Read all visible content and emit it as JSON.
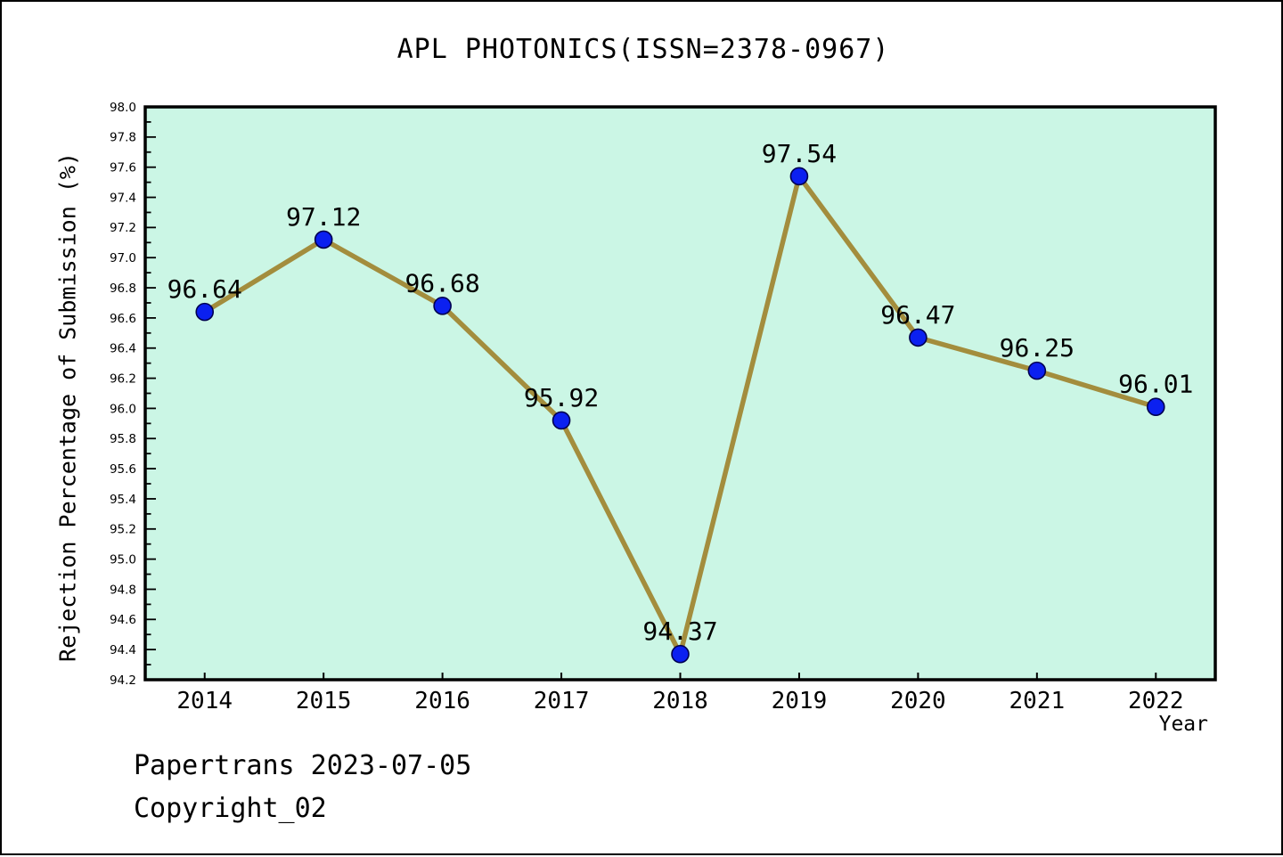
{
  "chart_data": {
    "type": "line",
    "title": "APL PHOTONICS(ISSN=2378-0967)",
    "xlabel": "Year",
    "ylabel": "Rejection Percentage of Submission (%)",
    "categories": [
      2014,
      2015,
      2016,
      2017,
      2018,
      2019,
      2020,
      2021,
      2022
    ],
    "values": [
      96.64,
      97.12,
      96.68,
      95.92,
      94.37,
      97.54,
      96.47,
      96.25,
      96.01
    ],
    "point_labels": [
      "96.64",
      "97.12",
      "96.68",
      "95.92",
      "94.37",
      "97.54",
      "96.47",
      "96.25",
      "96.01"
    ],
    "ylim": [
      94.2,
      98.0
    ],
    "xlim": [
      2013.5,
      2022.5
    ],
    "y_major_step": 0.2,
    "y_minor_step": 0.1,
    "y_tick_labels": [
      "98.0",
      "97.8",
      "97.6",
      "97.4",
      "97.2",
      "97.0",
      "96.8",
      "96.6",
      "96.4",
      "96.2",
      "96.0",
      "95.8",
      "95.6",
      "95.4",
      "95.2",
      "95.0",
      "94.8",
      "94.6",
      "94.4",
      "94.2"
    ],
    "grid": false,
    "legend": "none",
    "colors": {
      "plot_bg": "#cbf6e5",
      "line": "#a38d3d",
      "marker_fill": "#0b20f0",
      "marker_edge": "#000050",
      "axis": "#000000",
      "text": "#000000",
      "page_bg": "#ffffff"
    }
  },
  "footer": {
    "line1": "Papertrans 2023-07-05",
    "line2": "Copyright_02"
  }
}
